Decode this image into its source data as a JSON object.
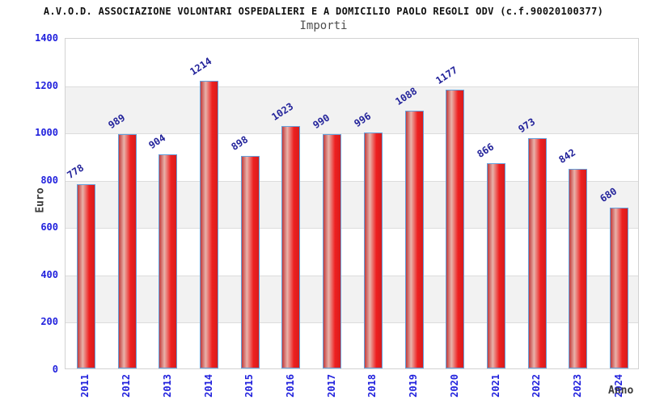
{
  "chart_data": {
    "type": "bar",
    "title": "A.V.O.D. ASSOCIAZIONE VOLONTARI OSPEDALIERI E A DOMICILIO PAOLO REGOLI ODV (c.f.90020100377)",
    "subtitle": "Importi",
    "xlabel": "Anno",
    "ylabel": "Euro",
    "categories": [
      "2011",
      "2012",
      "2013",
      "2014",
      "2015",
      "2016",
      "2017",
      "2018",
      "2019",
      "2020",
      "2021",
      "2022",
      "2023",
      "2024"
    ],
    "values": [
      778,
      989,
      904,
      1214,
      898,
      1023,
      990,
      996,
      1088,
      1177,
      866,
      973,
      842,
      680
    ],
    "ylim": [
      0,
      1400
    ],
    "ytick_step": 200,
    "grid": true,
    "bands": true,
    "legend": "none",
    "colors": {
      "bar_fill_edge": "#c23b3b",
      "bar_fill_light": "#e8b2aa",
      "bar_fill_main": "#ee2020",
      "bar_fill_right": "#d81c1c",
      "bar_border": "#64a0dc",
      "axis_tick_text": "#2222dd",
      "value_label_text": "#22229a",
      "band_fill": "#f2f2f2",
      "grid_line": "#dcdcdc",
      "plot_border": "#d2d2d2",
      "title_text": "#111111",
      "subtitle_text": "#4d4d4d",
      "axis_name_text": "#3a3a3a"
    }
  }
}
